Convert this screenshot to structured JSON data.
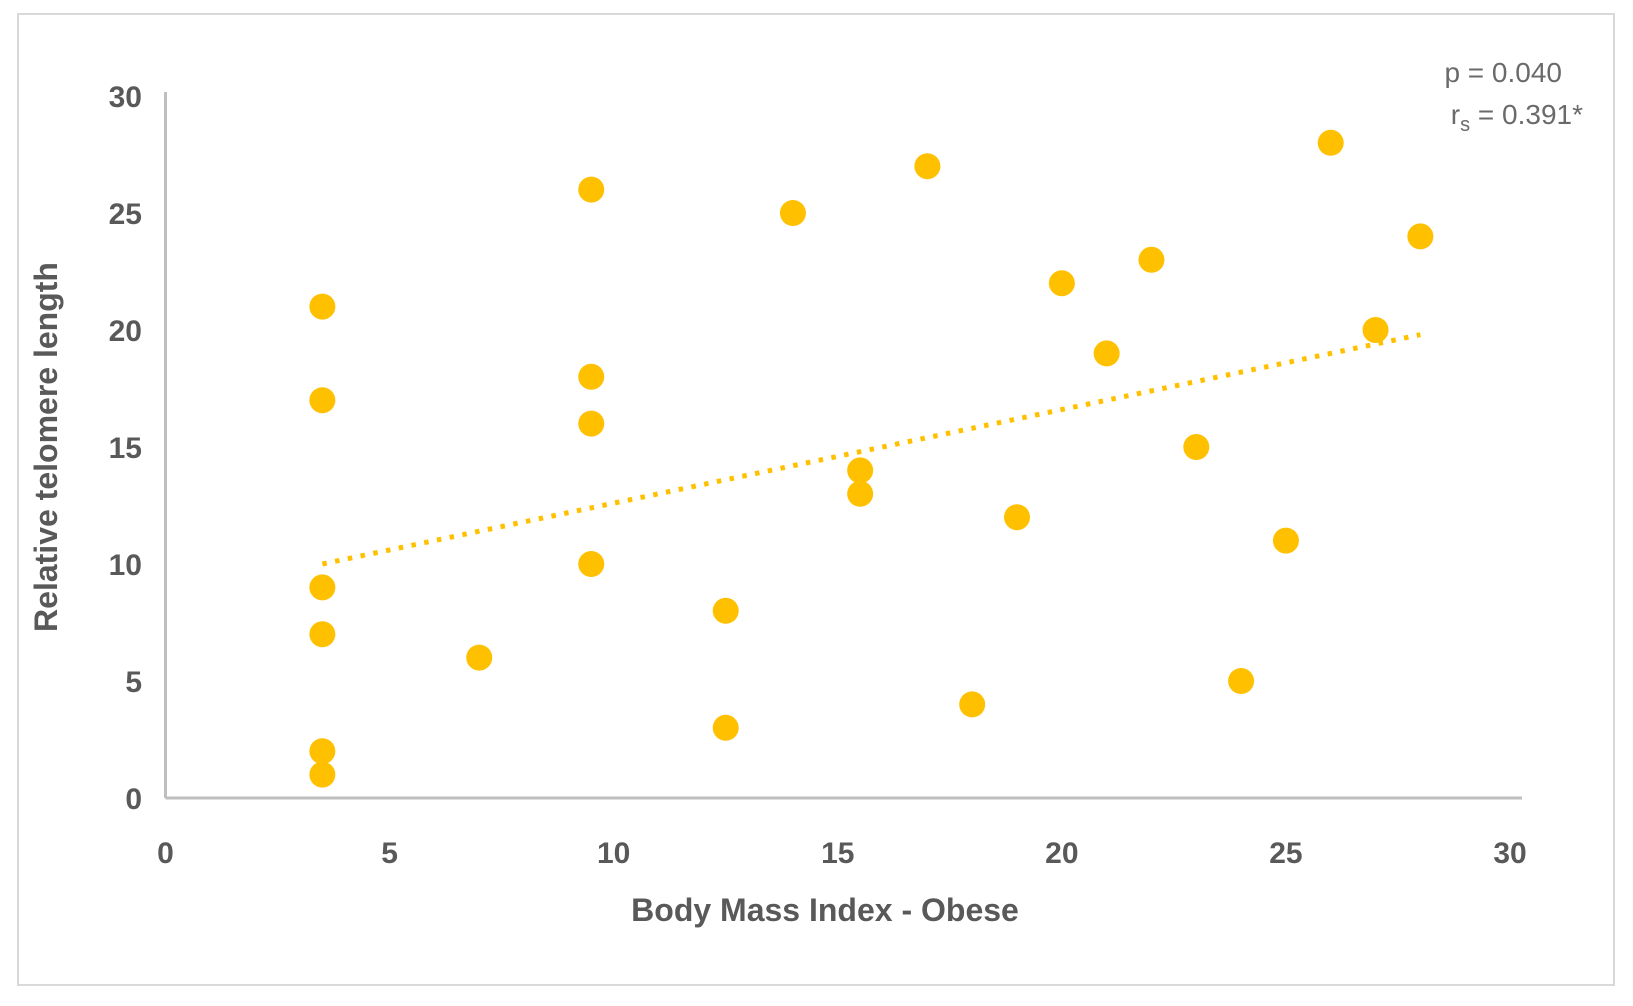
{
  "chart_data": {
    "type": "scatter",
    "title": "",
    "xlabel": "Body Mass Index - Obese",
    "ylabel": "Relative telomere length",
    "xlim": [
      0,
      30
    ],
    "ylim": [
      0,
      30
    ],
    "x_ticks": [
      0,
      5,
      10,
      15,
      20,
      25,
      30
    ],
    "y_ticks": [
      0,
      5,
      10,
      15,
      20,
      25,
      30
    ],
    "grid": false,
    "legend": "none",
    "series": [
      {
        "name": "Body Mass Index - Obese",
        "marker": "circle",
        "marker_color": "#FFC000",
        "points": [
          [
            3.5,
            21
          ],
          [
            3.5,
            17
          ],
          [
            3.5,
            9
          ],
          [
            3.5,
            7
          ],
          [
            3.5,
            2
          ],
          [
            3.5,
            1
          ],
          [
            7,
            6
          ],
          [
            9.5,
            26
          ],
          [
            9.5,
            18
          ],
          [
            9.5,
            16
          ],
          [
            9.5,
            10
          ],
          [
            12.5,
            8
          ],
          [
            12.5,
            3
          ],
          [
            14,
            25
          ],
          [
            15.5,
            14
          ],
          [
            15.5,
            13
          ],
          [
            17,
            27
          ],
          [
            18,
            4
          ],
          [
            19,
            12
          ],
          [
            20,
            22
          ],
          [
            21,
            19
          ],
          [
            22,
            23
          ],
          [
            23,
            15
          ],
          [
            24,
            5
          ],
          [
            25,
            11
          ],
          [
            26,
            28
          ],
          [
            27,
            20
          ],
          [
            28,
            24
          ]
        ]
      }
    ],
    "trendline": {
      "style": "dotted",
      "color": "#FFC000",
      "x1": 3.5,
      "y1": 10.0,
      "x2": 28,
      "y2": 19.8
    },
    "annotations": {
      "p_label": "p = 0.040",
      "r_base": "r",
      "r_sub": "s",
      "r_rest": " = 0.391*"
    }
  },
  "colors": {
    "marker": "#FFC000",
    "trendline": "#FFC000",
    "axis_line": "#BFBFBF",
    "tick_text": "#595959",
    "title_text": "#595959",
    "annotation_text": "#6A6A6A",
    "border": "#D9D9D9",
    "background": "#FFFFFF"
  }
}
